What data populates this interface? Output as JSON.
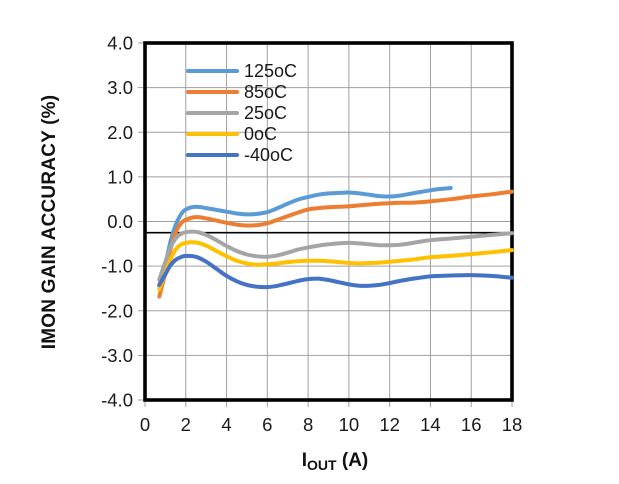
{
  "figure": {
    "background": "#ffffff",
    "frame_color": "#000000",
    "grid_color": "#a0a0a0"
  },
  "y_axis": {
    "title": "IMON GAIN ACCURACY (%)",
    "ticks": [
      "4.0",
      "3.0",
      "2.0",
      "1.0",
      "0.0",
      "-1.0",
      "-2.0",
      "-3.0",
      "-4.0"
    ],
    "min": -4,
    "max": 4,
    "step": 1
  },
  "x_axis": {
    "title_prefix": "I",
    "title_sub": "OUT",
    "title_suffix": " (A)",
    "ticks": [
      "0",
      "2",
      "4",
      "6",
      "8",
      "10",
      "12",
      "14",
      "16",
      "18"
    ],
    "min": 0,
    "max": 18,
    "step": 2
  },
  "chart_data": {
    "type": "line",
    "title": "",
    "xlabel": "IOUT (A)",
    "ylabel": "IMON GAIN ACCURACY (%)",
    "xlim": [
      0,
      18
    ],
    "ylim": [
      -4,
      4
    ],
    "grid": true,
    "x_grid_step": 2,
    "y_grid_step": 1,
    "legend_position": "top-left-inside",
    "reference_line_y": -0.25,
    "line_width": 4,
    "series": [
      {
        "name": "125oC",
        "color": "#5B9BD5",
        "points": [
          [
            0.7,
            -1.45
          ],
          [
            1,
            -0.95
          ],
          [
            1.25,
            -0.45
          ],
          [
            1.5,
            -0.08
          ],
          [
            1.75,
            0.15
          ],
          [
            2,
            0.27
          ],
          [
            2.5,
            0.33
          ],
          [
            3,
            0.3
          ],
          [
            3.5,
            0.26
          ],
          [
            4,
            0.22
          ],
          [
            4.5,
            0.18
          ],
          [
            5,
            0.16
          ],
          [
            5.5,
            0.17
          ],
          [
            6,
            0.21
          ],
          [
            6.5,
            0.3
          ],
          [
            7,
            0.4
          ],
          [
            7.5,
            0.49
          ],
          [
            8,
            0.55
          ],
          [
            8.5,
            0.6
          ],
          [
            9,
            0.63
          ],
          [
            9.5,
            0.64
          ],
          [
            10,
            0.65
          ],
          [
            10.5,
            0.63
          ],
          [
            11,
            0.6
          ],
          [
            11.5,
            0.57
          ],
          [
            12,
            0.56
          ],
          [
            12.5,
            0.58
          ],
          [
            13,
            0.62
          ],
          [
            13.5,
            0.66
          ],
          [
            14,
            0.7
          ],
          [
            14.5,
            0.73
          ],
          [
            15,
            0.75
          ]
        ]
      },
      {
        "name": "85oC",
        "color": "#ED7D31",
        "points": [
          [
            0.7,
            -1.68
          ],
          [
            1,
            -1.15
          ],
          [
            1.25,
            -0.62
          ],
          [
            1.5,
            -0.25
          ],
          [
            1.75,
            -0.05
          ],
          [
            2,
            0.04
          ],
          [
            2.5,
            0.1
          ],
          [
            3,
            0.07
          ],
          [
            3.5,
            0.02
          ],
          [
            4,
            -0.03
          ],
          [
            4.5,
            -0.07
          ],
          [
            5,
            -0.09
          ],
          [
            5.5,
            -0.08
          ],
          [
            6,
            -0.04
          ],
          [
            6.5,
            0.04
          ],
          [
            7,
            0.12
          ],
          [
            7.5,
            0.2
          ],
          [
            8,
            0.27
          ],
          [
            8.5,
            0.3
          ],
          [
            9,
            0.32
          ],
          [
            9.5,
            0.33
          ],
          [
            10,
            0.34
          ],
          [
            10.5,
            0.36
          ],
          [
            11,
            0.38
          ],
          [
            11.5,
            0.4
          ],
          [
            12,
            0.41
          ],
          [
            12.5,
            0.42
          ],
          [
            13,
            0.42
          ],
          [
            13.5,
            0.43
          ],
          [
            14,
            0.45
          ],
          [
            15,
            0.5
          ],
          [
            16,
            0.56
          ],
          [
            17,
            0.61
          ],
          [
            18,
            0.67
          ]
        ]
      },
      {
        "name": "25oC",
        "color": "#A5A5A5",
        "points": [
          [
            0.7,
            -1.3
          ],
          [
            1,
            -0.9
          ],
          [
            1.25,
            -0.58
          ],
          [
            1.5,
            -0.38
          ],
          [
            1.75,
            -0.28
          ],
          [
            2,
            -0.24
          ],
          [
            2.5,
            -0.23
          ],
          [
            3,
            -0.3
          ],
          [
            3.5,
            -0.42
          ],
          [
            4,
            -0.55
          ],
          [
            4.5,
            -0.66
          ],
          [
            5,
            -0.74
          ],
          [
            5.5,
            -0.78
          ],
          [
            6,
            -0.79
          ],
          [
            6.5,
            -0.76
          ],
          [
            7,
            -0.7
          ],
          [
            7.5,
            -0.63
          ],
          [
            8,
            -0.58
          ],
          [
            8.5,
            -0.54
          ],
          [
            9,
            -0.51
          ],
          [
            9.5,
            -0.49
          ],
          [
            10,
            -0.48
          ],
          [
            10.5,
            -0.49
          ],
          [
            11,
            -0.51
          ],
          [
            11.5,
            -0.53
          ],
          [
            12,
            -0.53
          ],
          [
            12.5,
            -0.52
          ],
          [
            13,
            -0.49
          ],
          [
            13.5,
            -0.45
          ],
          [
            14,
            -0.42
          ],
          [
            15,
            -0.38
          ],
          [
            16,
            -0.34
          ],
          [
            17,
            -0.3
          ],
          [
            18,
            -0.26
          ]
        ]
      },
      {
        "name": "0oC",
        "color": "#FFC000",
        "points": [
          [
            0.7,
            -1.52
          ],
          [
            1,
            -1.15
          ],
          [
            1.25,
            -0.85
          ],
          [
            1.5,
            -0.63
          ],
          [
            1.75,
            -0.52
          ],
          [
            2,
            -0.48
          ],
          [
            2.5,
            -0.47
          ],
          [
            3,
            -0.54
          ],
          [
            3.5,
            -0.66
          ],
          [
            4,
            -0.78
          ],
          [
            4.5,
            -0.88
          ],
          [
            5,
            -0.94
          ],
          [
            5.5,
            -0.97
          ],
          [
            6,
            -0.96
          ],
          [
            6.5,
            -0.94
          ],
          [
            7,
            -0.91
          ],
          [
            7.5,
            -0.89
          ],
          [
            8,
            -0.88
          ],
          [
            8.5,
            -0.88
          ],
          [
            9,
            -0.89
          ],
          [
            9.5,
            -0.91
          ],
          [
            10,
            -0.93
          ],
          [
            10.5,
            -0.94
          ],
          [
            11,
            -0.93
          ],
          [
            11.5,
            -0.92
          ],
          [
            12,
            -0.9
          ],
          [
            12.5,
            -0.88
          ],
          [
            13,
            -0.86
          ],
          [
            13.5,
            -0.83
          ],
          [
            14,
            -0.8
          ],
          [
            15,
            -0.77
          ],
          [
            16,
            -0.73
          ],
          [
            17,
            -0.69
          ],
          [
            18,
            -0.64
          ]
        ]
      },
      {
        "name": "-40oC",
        "color": "#4472C4",
        "points": [
          [
            0.7,
            -1.42
          ],
          [
            1,
            -1.18
          ],
          [
            1.25,
            -0.98
          ],
          [
            1.5,
            -0.86
          ],
          [
            1.75,
            -0.8
          ],
          [
            2,
            -0.77
          ],
          [
            2.5,
            -0.79
          ],
          [
            3,
            -0.9
          ],
          [
            3.5,
            -1.06
          ],
          [
            4,
            -1.22
          ],
          [
            4.5,
            -1.34
          ],
          [
            5,
            -1.42
          ],
          [
            5.5,
            -1.46
          ],
          [
            6,
            -1.47
          ],
          [
            6.5,
            -1.44
          ],
          [
            7,
            -1.39
          ],
          [
            7.5,
            -1.33
          ],
          [
            8,
            -1.29
          ],
          [
            8.5,
            -1.28
          ],
          [
            9,
            -1.31
          ],
          [
            9.5,
            -1.36
          ],
          [
            10,
            -1.41
          ],
          [
            10.5,
            -1.44
          ],
          [
            11,
            -1.44
          ],
          [
            11.5,
            -1.42
          ],
          [
            12,
            -1.38
          ],
          [
            12.5,
            -1.33
          ],
          [
            13,
            -1.29
          ],
          [
            13.5,
            -1.26
          ],
          [
            14,
            -1.23
          ],
          [
            15,
            -1.21
          ],
          [
            16,
            -1.2
          ],
          [
            17,
            -1.22
          ],
          [
            18,
            -1.26
          ]
        ]
      }
    ]
  }
}
